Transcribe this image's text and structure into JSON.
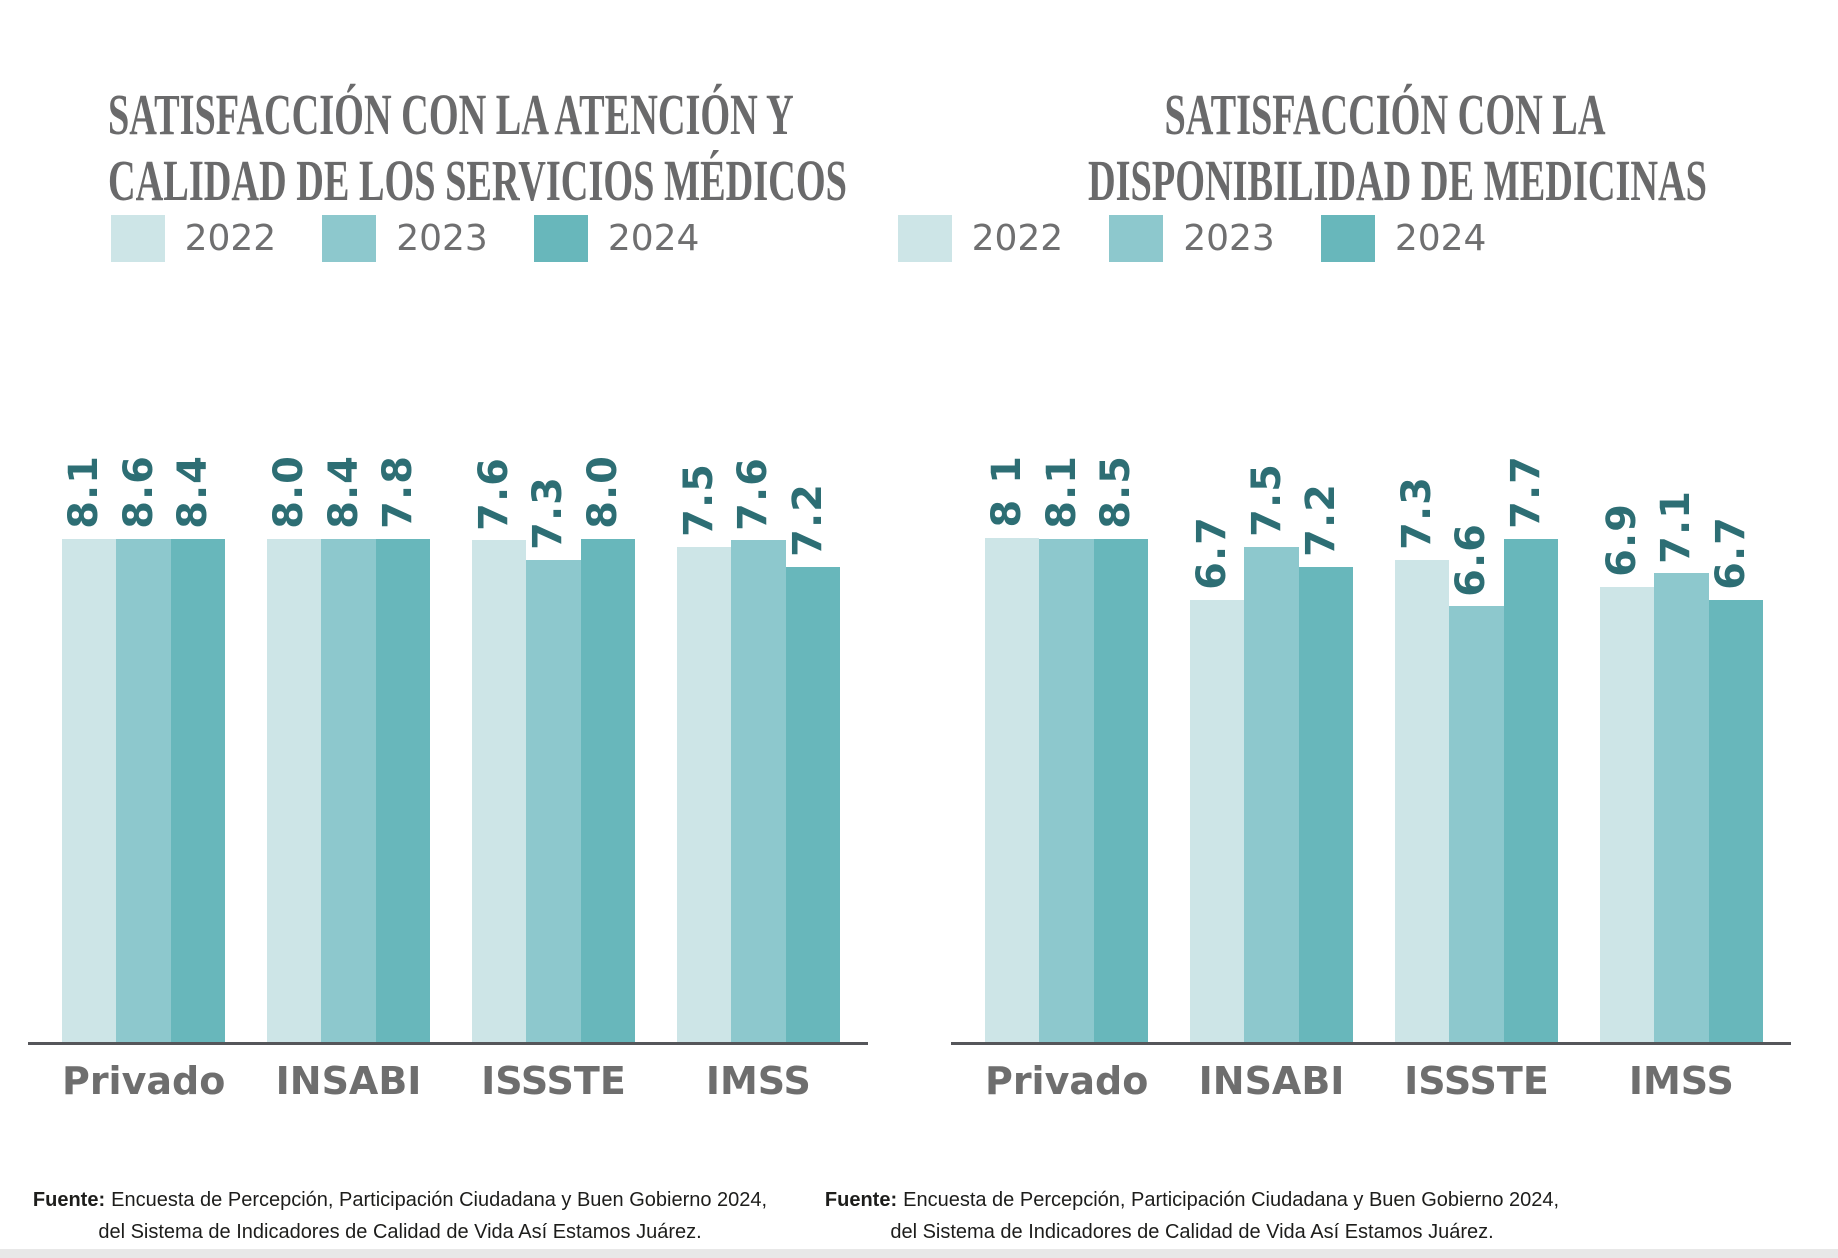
{
  "colors": {
    "series_2022": "#cde5e7",
    "series_2023": "#8dc8cd",
    "series_2024": "#68b7bb",
    "value_label": "#2d6e74",
    "title_text": "#6a6a6b",
    "category_text": "#6e6e6e",
    "legend_text": "#6f6f70",
    "axis_line": "#55565a",
    "source_text": "#1d1d1b",
    "bottom_strip": "#e8e8e8"
  },
  "chart_data": [
    {
      "type": "bar",
      "title_lines": [
        "SATISFACCIÓN CON LA ATENCIÓN Y",
        "CALIDAD DE LOS SERVICIOS MÉDICOS"
      ],
      "categories": [
        "Privado",
        "INSABI",
        "ISSSTE",
        "IMSS"
      ],
      "series": [
        {
          "name": "2022",
          "color": "#cde5e7",
          "values": [
            8.1,
            8.0,
            7.6,
            7.5
          ],
          "value_labels": [
            "8.1",
            "8.0",
            "7.6",
            "7.5"
          ]
        },
        {
          "name": "2023",
          "color": "#8dc8cd",
          "values": [
            8.6,
            8.4,
            7.3,
            7.6
          ],
          "value_labels": [
            "8.6",
            "8.4",
            "7.3",
            "7.6"
          ]
        },
        {
          "name": "2024",
          "color": "#68b7bb",
          "values": [
            8.4,
            7.8,
            8.0,
            7.2
          ],
          "value_labels": [
            "8.4",
            "7.8",
            "8.0",
            "7.2"
          ]
        }
      ],
      "value_axis": {
        "baseline": 0,
        "gridlines": false,
        "tick_labels_visible": false
      },
      "legend_position": "top",
      "source": {
        "label": "Fuente:",
        "text": "Encuesta de Percepción, Participación Ciudadana y Buen Gobierno 2024, del Sistema de Indicadores de Calidad de Vida Así Estamos Juárez."
      }
    },
    {
      "type": "bar",
      "title_lines": [
        "SATISFACCIÓN CON LA",
        "DISPONIBILIDAD DE MEDICINAS"
      ],
      "categories": [
        "Privado",
        "INSABI",
        "ISSSTE",
        "IMSS"
      ],
      "series": [
        {
          "name": "2022",
          "color": "#cde5e7",
          "values": [
            8.1,
            6.7,
            7.3,
            6.9
          ],
          "value_labels": [
            "8 1",
            "6.7",
            "7.3",
            "6.9"
          ]
        },
        {
          "name": "2023",
          "color": "#8dc8cd",
          "values": [
            8.1,
            7.5,
            6.6,
            7.1
          ],
          "value_labels": [
            "8.1",
            "7.5",
            "6.6",
            "7.1"
          ]
        },
        {
          "name": "2024",
          "color": "#68b7bb",
          "values": [
            8.5,
            7.2,
            7.7,
            6.7
          ],
          "value_labels": [
            "8.5",
            "7.2",
            "7.7",
            "6.7"
          ]
        }
      ],
      "value_axis": {
        "baseline": 0,
        "gridlines": false,
        "tick_labels_visible": false
      },
      "legend_position": "top",
      "source": {
        "label": "Fuente:",
        "text": "Encuesta de Percepción, Participación Ciudadana y Buen Gobierno 2024, del Sistema de Indicadores de Calidad de Vida Así Estamos Juárez."
      }
    }
  ]
}
